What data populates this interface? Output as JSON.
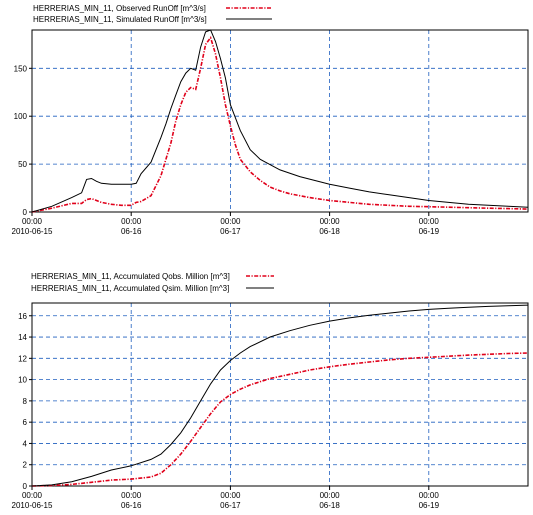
{
  "chart_data": [
    {
      "type": "line",
      "legend_position": "top-left",
      "grid": true,
      "x_ticks": [
        "00:00\n2010-06-15",
        "00:00\n06-16",
        "00:00\n06-17",
        "00:00\n06-18",
        "00:00\n06-19"
      ],
      "xlim_days": [
        0,
        5
      ],
      "ylim": [
        0,
        190
      ],
      "y_ticks": [
        "0",
        "50",
        "100",
        "150"
      ],
      "y_tick_values": [
        0,
        50,
        100,
        150
      ],
      "series": [
        {
          "name": "HERRERIAS_MIN_11, Observed RunOff [m^3/s]",
          "color": "#e0001a",
          "style": "dash-dot",
          "x": [
            0,
            0.2,
            0.4,
            0.5,
            0.55,
            0.6,
            0.65,
            0.7,
            0.8,
            0.9,
            1.0,
            1.05,
            1.1,
            1.2,
            1.3,
            1.35,
            1.4,
            1.45,
            1.5,
            1.55,
            1.6,
            1.65,
            1.7,
            1.75,
            1.8,
            1.85,
            1.9,
            1.95,
            2.0,
            2.05,
            2.1,
            2.2,
            2.3,
            2.4,
            2.5,
            2.6,
            2.8,
            3.0,
            3.2,
            3.4,
            3.6,
            3.8,
            4.0,
            4.2,
            4.4,
            4.6,
            4.8,
            5.0
          ],
          "y": [
            0,
            4,
            9,
            9,
            13,
            14,
            12,
            10,
            8,
            7,
            7,
            10,
            11,
            17,
            38,
            55,
            72,
            95,
            112,
            125,
            130,
            128,
            150,
            175,
            182,
            165,
            140,
            112,
            90,
            70,
            55,
            42,
            33,
            26,
            22,
            19,
            15,
            12,
            10,
            8,
            7,
            6,
            5.5,
            5,
            4.5,
            4,
            3.5,
            3
          ]
        },
        {
          "name": "HERRERIAS_MIN_11, Simulated RunOff [m^3/s]",
          "color": "#000000",
          "style": "solid",
          "x": [
            0,
            0.2,
            0.4,
            0.5,
            0.55,
            0.6,
            0.65,
            0.7,
            0.8,
            0.9,
            1.0,
            1.05,
            1.1,
            1.2,
            1.3,
            1.35,
            1.4,
            1.45,
            1.5,
            1.55,
            1.6,
            1.65,
            1.7,
            1.75,
            1.8,
            1.85,
            1.9,
            1.95,
            2.0,
            2.1,
            2.2,
            2.3,
            2.5,
            2.7,
            3.0,
            3.2,
            3.4,
            3.6,
            3.8,
            4.0,
            4.2,
            4.4,
            4.6,
            4.8,
            5.0
          ],
          "y": [
            0,
            6,
            15,
            20,
            34,
            35,
            32,
            30,
            29,
            29,
            29,
            30,
            40,
            52,
            78,
            92,
            108,
            122,
            136,
            145,
            150,
            148,
            172,
            188,
            190,
            178,
            160,
            140,
            112,
            85,
            65,
            55,
            44,
            37,
            29,
            25,
            21,
            18,
            15,
            12,
            10,
            8,
            7,
            6,
            5
          ]
        }
      ]
    },
    {
      "type": "line",
      "legend_position": "top-left",
      "grid": true,
      "x_ticks": [
        "00:00\n2010-06-15",
        "00:00\n06-16",
        "00:00\n06-17",
        "00:00\n06-18",
        "00:00\n06-19"
      ],
      "xlim_days": [
        0,
        5
      ],
      "ylim": [
        0,
        17.2
      ],
      "y_ticks": [
        "0",
        "2",
        "4",
        "6",
        "8",
        "10",
        "12",
        "14",
        "16"
      ],
      "y_tick_values": [
        0,
        2,
        4,
        6,
        8,
        10,
        12,
        14,
        16
      ],
      "series": [
        {
          "name": "HERRERIAS_MIN_11, Accumulated Qobs. Million [m^3]",
          "color": "#e0001a",
          "style": "dash-dot",
          "x": [
            0,
            0.2,
            0.4,
            0.6,
            0.8,
            1.0,
            1.2,
            1.3,
            1.4,
            1.5,
            1.6,
            1.7,
            1.8,
            1.9,
            2.0,
            2.1,
            2.2,
            2.4,
            2.6,
            2.8,
            3.0,
            3.2,
            3.4,
            3.6,
            3.8,
            4.0,
            4.2,
            4.4,
            4.6,
            4.8,
            5.0
          ],
          "y": [
            0,
            0.05,
            0.15,
            0.35,
            0.55,
            0.65,
            0.85,
            1.2,
            2.0,
            3.0,
            4.2,
            5.5,
            6.8,
            7.9,
            8.6,
            9.1,
            9.5,
            10.1,
            10.5,
            10.9,
            11.2,
            11.45,
            11.65,
            11.85,
            12.0,
            12.1,
            12.2,
            12.3,
            12.38,
            12.45,
            12.5
          ]
        },
        {
          "name": "HERRERIAS_MIN_11, Accumulated Qsim. Million [m^3]",
          "color": "#000000",
          "style": "solid",
          "x": [
            0,
            0.2,
            0.4,
            0.6,
            0.8,
            1.0,
            1.2,
            1.3,
            1.4,
            1.5,
            1.6,
            1.7,
            1.8,
            1.9,
            2.0,
            2.1,
            2.2,
            2.4,
            2.6,
            2.8,
            3.0,
            3.2,
            3.4,
            3.6,
            3.8,
            4.0,
            4.2,
            4.4,
            4.6,
            4.8,
            5.0
          ],
          "y": [
            0,
            0.1,
            0.4,
            0.9,
            1.5,
            1.9,
            2.5,
            3.0,
            3.9,
            5.0,
            6.4,
            8.0,
            9.6,
            10.9,
            11.8,
            12.5,
            13.1,
            14.0,
            14.6,
            15.1,
            15.5,
            15.8,
            16.05,
            16.25,
            16.45,
            16.6,
            16.7,
            16.8,
            16.88,
            16.95,
            17.0
          ]
        }
      ]
    }
  ]
}
